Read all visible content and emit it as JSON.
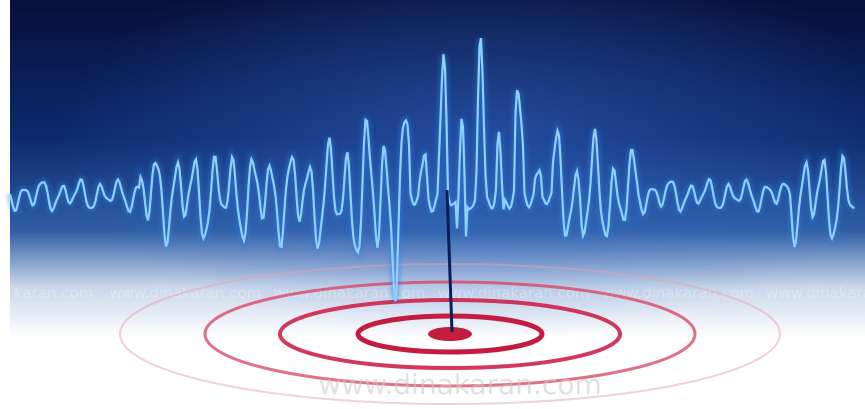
{
  "watermark": "www.dinakaran.com",
  "watermark_row": [
    "karan.com",
    "www.dinakaran.com",
    "www.dinakaran.com",
    "www.dinakaran.com",
    "www.dinakaran.com",
    "www.dinakaran.com",
    "www.dinakaran"
  ]
}
